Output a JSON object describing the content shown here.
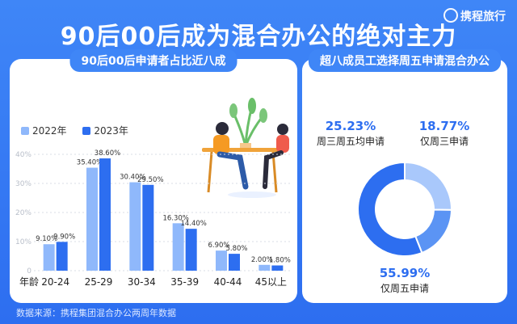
{
  "title": "90后00后成为混合办公的绝对主力",
  "logo": "携程旅行",
  "left_panel_title": "90后00后申请者占比近八成",
  "right_panel_title": "超八成员工选择周五申请混合办公",
  "source": "数据来源：携程集团混合办公两周年数据",
  "colors": {
    "series_2022": "#8fb8fb",
    "series_2023": "#2d6ef0",
    "donut_main": "#2d6ef0",
    "donut_mid": "#5b94f4",
    "donut_light": "#a9c8fb"
  },
  "chart_data": [
    {
      "type": "bar",
      "xlabel": "年龄",
      "categories": [
        "20-24",
        "25-29",
        "30-34",
        "35-39",
        "40-44",
        "45以上"
      ],
      "series": [
        {
          "name": "2022年",
          "values": [
            9.1,
            35.4,
            30.4,
            16.3,
            6.9,
            2.0
          ],
          "labels": [
            "9.10%",
            "35.40%",
            "30.40%",
            "16.30%",
            "6.90%",
            "2.00%"
          ]
        },
        {
          "name": "2023年",
          "values": [
            9.9,
            38.6,
            29.5,
            14.4,
            5.8,
            1.8
          ],
          "labels": [
            "9.90%",
            "38.60%",
            "29.50%",
            "14.40%",
            "5.80%",
            "1.80%"
          ]
        }
      ],
      "ylim": [
        0,
        40
      ],
      "yticks": [
        0,
        10,
        20,
        30,
        40
      ],
      "ytick_labels": [
        "0",
        "10%",
        "20%",
        "30%",
        "40%"
      ],
      "grid": true
    },
    {
      "type": "pie",
      "style": "donut",
      "slices": [
        {
          "label": "仅周五申请",
          "value": 55.99,
          "pct": "55.99%"
        },
        {
          "label": "周三周五均申请",
          "value": 25.23,
          "pct": "25.23%"
        },
        {
          "label": "仅周三申请",
          "value": 18.77,
          "pct": "18.77%"
        }
      ]
    }
  ]
}
